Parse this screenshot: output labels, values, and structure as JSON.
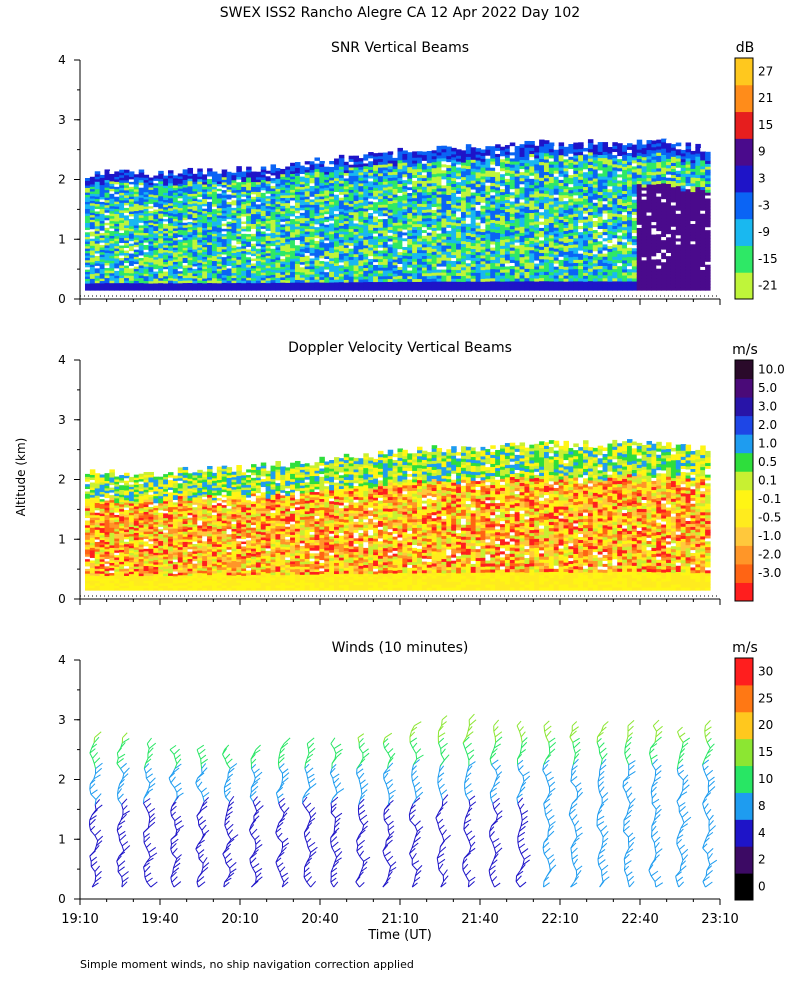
{
  "main_title": "SWEX ISS2 Rancho Alegre CA  12 Apr 2022 Day 102",
  "y_axis_label": "Altitude (km)",
  "x_axis_label": "Time (UT)",
  "footnote": "Simple moment winds, no ship navigation correction applied",
  "colors": {
    "snr": [
      "#bff53a",
      "#2ee866",
      "#19b8f0",
      "#0a64f5",
      "#1e14c8",
      "#4a0a8c",
      "#e61e1e",
      "#ff8c1a",
      "#ffc81e"
    ],
    "velocity": [
      "#ff1e1e",
      "#ff6414",
      "#ff9628",
      "#ffc83c",
      "#ffeb1e",
      "#fff514",
      "#c8f032",
      "#2ede3c",
      "#1e9cf0",
      "#1e46e6",
      "#2814a8",
      "#4a0a78",
      "#2a0a2a"
    ],
    "winds": [
      "#000000",
      "#3c0a64",
      "#1e14c8",
      "#1e9cf0",
      "#28e664",
      "#8ce632",
      "#ffc81e",
      "#ff7814",
      "#ff1e1e"
    ]
  },
  "chart_data": [
    {
      "type": "heatmap",
      "title": "SNR Vertical Beams",
      "units": "dB",
      "colorbar_ticks": [
        "27",
        "21",
        "15",
        "9",
        "3",
        "-3",
        "-9",
        "-15",
        "-21"
      ],
      "y_ticks": [
        "0",
        "1",
        "2",
        "3",
        "4"
      ],
      "ylim": [
        0,
        4
      ],
      "xlim": [
        "19:10",
        "23:10"
      ],
      "top_of_signal_km": [
        2.1,
        2.1,
        2.15,
        2.2,
        2.3,
        2.4,
        2.5,
        2.55,
        2.6,
        2.6,
        2.65,
        2.5
      ]
    },
    {
      "type": "heatmap",
      "title": "Doppler Velocity Vertical Beams",
      "units": "m/s",
      "colorbar_ticks": [
        "10.0",
        "5.0",
        "3.0",
        "2.0",
        "1.0",
        "0.5",
        "0.1",
        "-0.1",
        "-0.5",
        "-1.0",
        "-2.0",
        "-3.0"
      ],
      "y_ticks": [
        "0",
        "1",
        "2",
        "3",
        "4"
      ],
      "ylim": [
        0,
        4
      ],
      "xlim": [
        "19:10",
        "23:10"
      ],
      "top_of_signal_km": [
        2.1,
        2.1,
        2.15,
        2.2,
        2.3,
        2.4,
        2.5,
        2.55,
        2.6,
        2.6,
        2.65,
        2.5
      ]
    },
    {
      "type": "scatter",
      "title": "Winds (10 minutes)",
      "units": "m/s",
      "colorbar_ticks": [
        "30",
        "25",
        "20",
        "15",
        "10",
        "8",
        "4",
        "2",
        "0"
      ],
      "y_ticks": [
        "0",
        "1",
        "2",
        "3",
        "4"
      ],
      "ylim": [
        0,
        4
      ],
      "x_ticks": [
        "19:10",
        "19:40",
        "20:10",
        "20:40",
        "21:10",
        "21:40",
        "22:10",
        "22:40",
        "23:10"
      ],
      "x_minutes": [
        1150,
        1180,
        1210,
        1240,
        1270,
        1300,
        1330,
        1360,
        1390
      ],
      "profiles": [
        {
          "time_min": 1155,
          "top_km": 2.7
        },
        {
          "time_min": 1165,
          "top_km": 2.7
        },
        {
          "time_min": 1175,
          "top_km": 2.6
        },
        {
          "time_min": 1185,
          "top_km": 2.5
        },
        {
          "time_min": 1195,
          "top_km": 2.5
        },
        {
          "time_min": 1205,
          "top_km": 2.5
        },
        {
          "time_min": 1215,
          "top_km": 2.5
        },
        {
          "time_min": 1225,
          "top_km": 2.6
        },
        {
          "time_min": 1235,
          "top_km": 2.6
        },
        {
          "time_min": 1245,
          "top_km": 2.6
        },
        {
          "time_min": 1255,
          "top_km": 2.7
        },
        {
          "time_min": 1265,
          "top_km": 2.7
        },
        {
          "time_min": 1275,
          "top_km": 2.9
        },
        {
          "time_min": 1285,
          "top_km": 3.0
        },
        {
          "time_min": 1295,
          "top_km": 3.0
        },
        {
          "time_min": 1305,
          "top_km": 2.9
        },
        {
          "time_min": 1315,
          "top_km": 2.9
        },
        {
          "time_min": 1325,
          "top_km": 2.9
        },
        {
          "time_min": 1335,
          "top_km": 2.9
        },
        {
          "time_min": 1345,
          "top_km": 2.9
        },
        {
          "time_min": 1355,
          "top_km": 2.9
        },
        {
          "time_min": 1365,
          "top_km": 2.9
        },
        {
          "time_min": 1375,
          "top_km": 2.8
        },
        {
          "time_min": 1385,
          "top_km": 2.9
        }
      ]
    }
  ]
}
